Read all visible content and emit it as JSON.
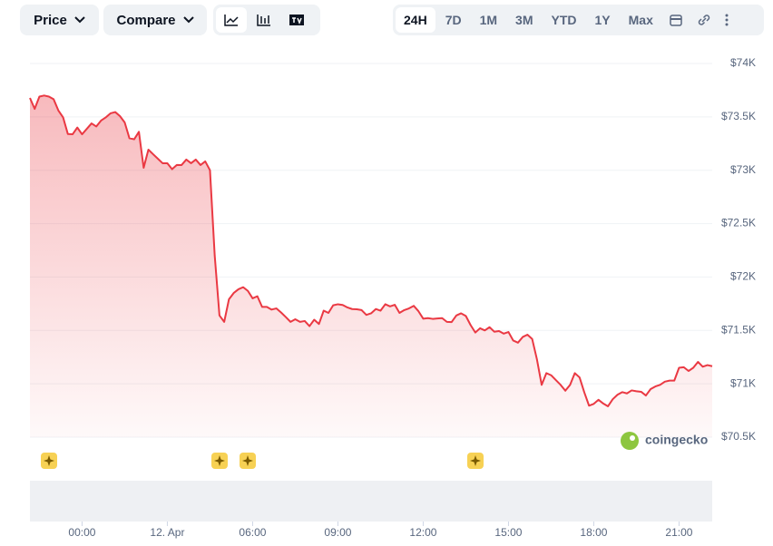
{
  "toolbar": {
    "price": "Price",
    "compare": "Compare",
    "ranges": [
      "24H",
      "7D",
      "1M",
      "3M",
      "YTD",
      "1Y",
      "Max"
    ],
    "active_range": "24H"
  },
  "watermark": "coingecko",
  "chart_data": {
    "type": "area",
    "color": "#ea3943",
    "grid": true,
    "xlim": [
      -110,
      1330
    ],
    "ylim": [
      70500,
      74000
    ],
    "xticks": [
      {
        "value": 0,
        "label": "00:00"
      },
      {
        "value": 180,
        "label": "12. Apr"
      },
      {
        "value": 360,
        "label": "06:00"
      },
      {
        "value": 540,
        "label": "09:00"
      },
      {
        "value": 720,
        "label": "12:00"
      },
      {
        "value": 900,
        "label": "15:00"
      },
      {
        "value": 1080,
        "label": "18:00"
      },
      {
        "value": 1260,
        "label": "21:00"
      }
    ],
    "yticks": [
      {
        "value": 70500,
        "label": "$70.5K"
      },
      {
        "value": 71000,
        "label": "$71K"
      },
      {
        "value": 71500,
        "label": "$71.5K"
      },
      {
        "value": 72000,
        "label": "$72K"
      },
      {
        "value": 72500,
        "label": "$72.5K"
      },
      {
        "value": 73000,
        "label": "$73K"
      },
      {
        "value": 73500,
        "label": "$73.5K"
      },
      {
        "value": 74000,
        "label": "$74K"
      }
    ],
    "x": [
      -110,
      -100,
      -90,
      -80,
      -70,
      -60,
      -50,
      -40,
      -30,
      -20,
      -10,
      0,
      10,
      20,
      30,
      40,
      50,
      60,
      70,
      80,
      90,
      100,
      110,
      120,
      130,
      140,
      150,
      160,
      170,
      180,
      190,
      200,
      210,
      220,
      230,
      240,
      250,
      260,
      270,
      280,
      290,
      300,
      310,
      320,
      330,
      340,
      350,
      360,
      370,
      380,
      390,
      400,
      410,
      420,
      430,
      440,
      450,
      460,
      470,
      480,
      490,
      500,
      510,
      520,
      530,
      540,
      550,
      560,
      570,
      580,
      590,
      600,
      610,
      620,
      630,
      640,
      650,
      660,
      670,
      680,
      690,
      700,
      710,
      720,
      730,
      740,
      750,
      760,
      770,
      780,
      790,
      800,
      810,
      820,
      830,
      840,
      850,
      860,
      870,
      880,
      890,
      900,
      910,
      920,
      930,
      940,
      950,
      960,
      970,
      980,
      990,
      1000,
      1010,
      1020,
      1030,
      1040,
      1050,
      1060,
      1070,
      1080,
      1090,
      1100,
      1110,
      1120,
      1130,
      1140,
      1150,
      1160,
      1170,
      1180,
      1190,
      1200,
      1210,
      1220,
      1230,
      1240,
      1250,
      1260,
      1270,
      1280,
      1290,
      1300,
      1310,
      1320,
      1330
    ],
    "values": [
      73677,
      73575,
      73690,
      73700,
      73690,
      73665,
      73560,
      73495,
      73340,
      73337,
      73400,
      73337,
      73388,
      73439,
      73410,
      73465,
      73495,
      73533,
      73545,
      73507,
      73448,
      73300,
      73290,
      73360,
      73023,
      73193,
      73150,
      73108,
      73066,
      73066,
      73010,
      73050,
      73049,
      73100,
      73066,
      73100,
      73049,
      73083,
      73000,
      72200,
      71640,
      71580,
      71791,
      71850,
      71885,
      71905,
      71870,
      71800,
      71820,
      71720,
      71720,
      71695,
      71706,
      71668,
      71625,
      71580,
      71604,
      71580,
      71588,
      71540,
      71600,
      71560,
      71685,
      71664,
      71735,
      71745,
      71738,
      71715,
      71700,
      71698,
      71690,
      71645,
      71660,
      71700,
      71685,
      71745,
      71725,
      71740,
      71664,
      71690,
      71706,
      71730,
      71680,
      71610,
      71615,
      71608,
      71612,
      71615,
      71580,
      71578,
      71640,
      71660,
      71635,
      71550,
      71480,
      71520,
      71500,
      71530,
      71488,
      71494,
      71470,
      71485,
      71405,
      71385,
      71438,
      71460,
      71420,
      71230,
      70990,
      71100,
      71080,
      71035,
      70990,
      70935,
      70990,
      71100,
      71060,
      70920,
      70795,
      70812,
      70850,
      70815,
      70789,
      70855,
      70897,
      70922,
      70910,
      70938,
      70930,
      70925,
      70890,
      70950,
      70975,
      70990,
      71020,
      71030,
      71030,
      71150,
      71155,
      71120,
      71150,
      71205,
      71160,
      71175,
      71165
    ]
  }
}
